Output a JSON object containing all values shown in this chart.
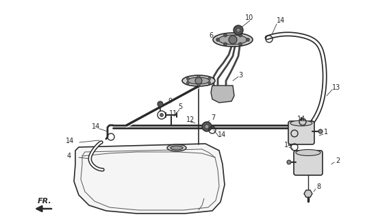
{
  "bg_color": "#ffffff",
  "line_color": "#2a2a2a",
  "label_color": "#222222",
  "figsize": [
    5.33,
    3.2
  ],
  "dpi": 100,
  "fr_label": "FR."
}
